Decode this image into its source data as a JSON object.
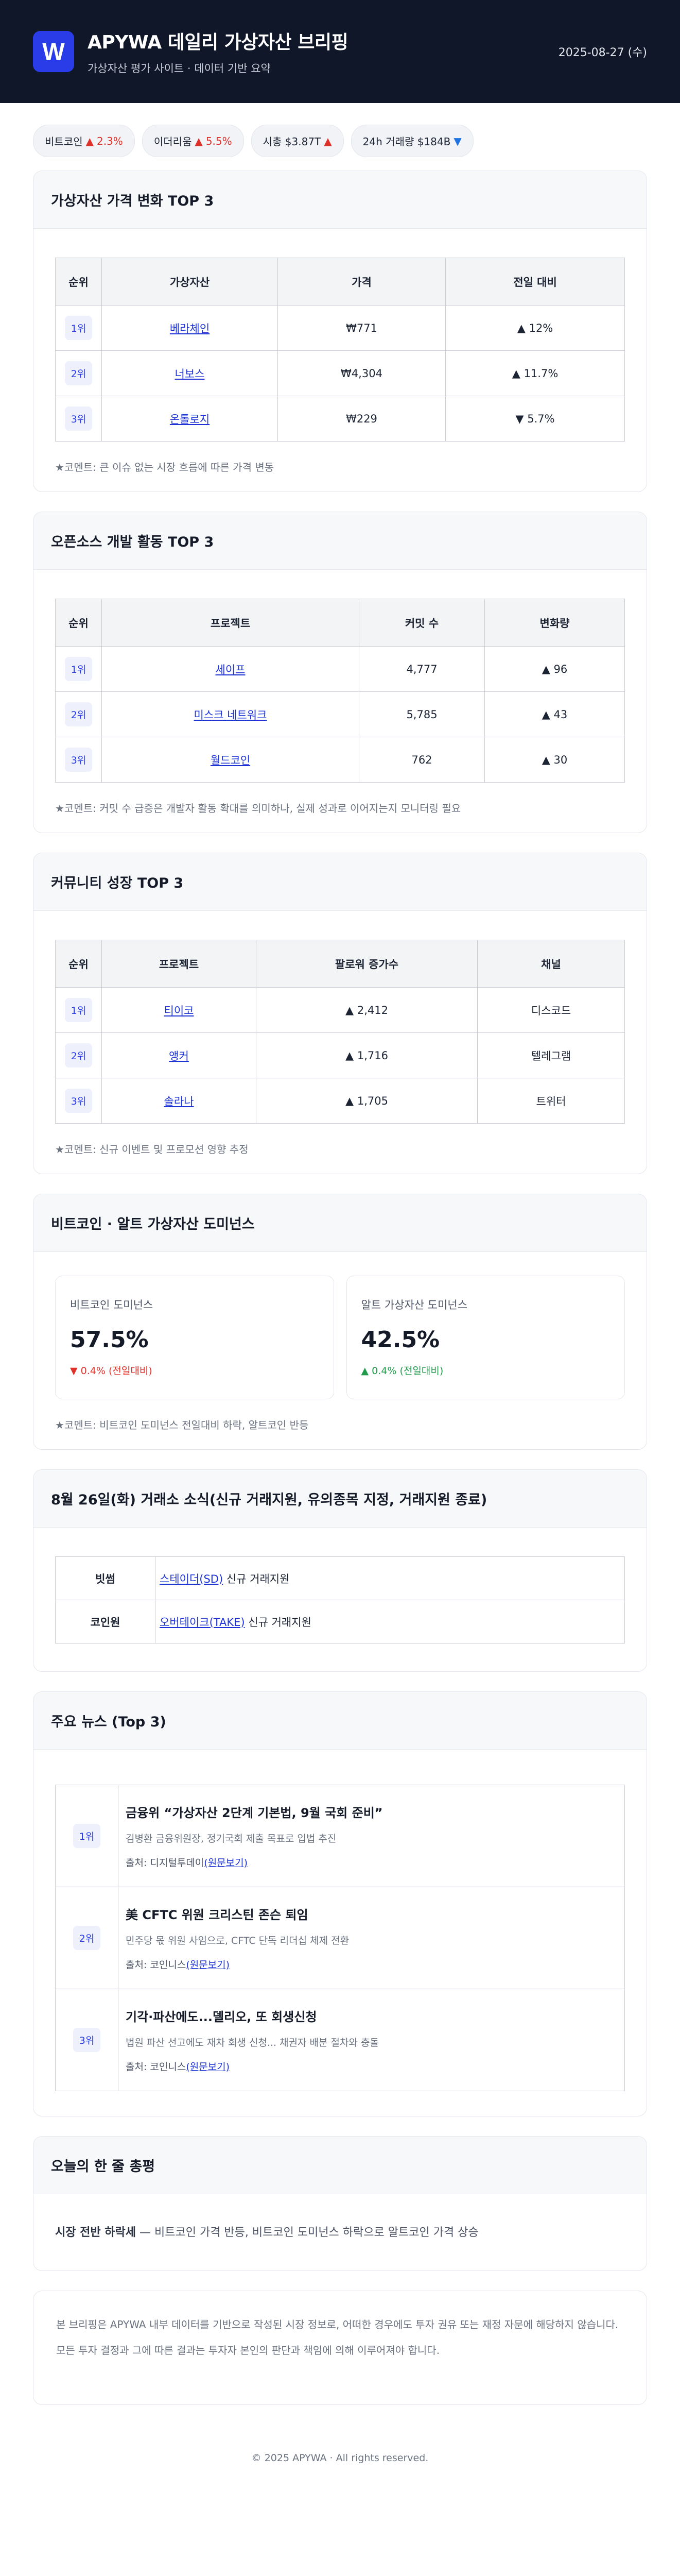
{
  "header": {
    "logo_letter": "W",
    "title": "APYWA 데일리 가상자산 브리핑",
    "subtitle": "가상자산 평가 사이트 · 데이터 기반 요약",
    "date": "2025-08-27 (수)"
  },
  "ticker": [
    {
      "label": "비트코인",
      "arrow": "▲",
      "value": "2.3%",
      "dir": "up"
    },
    {
      "label": "이더리움",
      "arrow": "▲",
      "value": "5.5%",
      "dir": "up"
    },
    {
      "label": "시총 $3.87T",
      "arrow": "▲",
      "value": "",
      "dir": "up"
    },
    {
      "label": "24h 거래량 $184B",
      "arrow": "▼",
      "value": "",
      "dir": "down"
    }
  ],
  "price_top3": {
    "title": "가상자산 가격 변화 TOP 3",
    "headers": [
      "순위",
      "가상자산",
      "가격",
      "전일 대비"
    ],
    "rows": [
      {
        "rank": "1위",
        "name": "베라체인",
        "price": "₩771",
        "arrow": "▲",
        "change": "12%",
        "dir": "up"
      },
      {
        "rank": "2위",
        "name": "너보스",
        "price": "₩4,304",
        "arrow": "▲",
        "change": "11.7%",
        "dir": "up"
      },
      {
        "rank": "3위",
        "name": "온톨로지",
        "price": "₩229",
        "arrow": "▼",
        "change": "5.7%",
        "dir": "down"
      }
    ],
    "comment": "★코멘트: 큰 이슈 없는 시장 흐름에 따른 가격 변동"
  },
  "dev_top3": {
    "title": "오픈소스 개발 활동 TOP 3",
    "headers": [
      "순위",
      "프로젝트",
      "커밋 수",
      "변화량"
    ],
    "rows": [
      {
        "rank": "1위",
        "name": "세이프",
        "commits": "4,777",
        "arrow": "▲",
        "change": "96"
      },
      {
        "rank": "2위",
        "name": "미스크 네트워크",
        "commits": "5,785",
        "arrow": "▲",
        "change": "43"
      },
      {
        "rank": "3위",
        "name": "월드코인",
        "commits": "762",
        "arrow": "▲",
        "change": "30"
      }
    ],
    "comment": "★코멘트: 커밋 수 급증은 개발자 활동 확대를 의미하나, 실제 성과로 이어지는지 모니터링 필요"
  },
  "community_top3": {
    "title": "커뮤니티 성장 TOP 3",
    "headers": [
      "순위",
      "프로젝트",
      "팔로워 증가수",
      "채널"
    ],
    "rows": [
      {
        "rank": "1위",
        "name": "티이코",
        "arrow": "▲",
        "followers": "2,412",
        "channel": "디스코드"
      },
      {
        "rank": "2위",
        "name": "앵커",
        "arrow": "▲",
        "followers": "1,716",
        "channel": "텔레그램"
      },
      {
        "rank": "3위",
        "name": "솔라나",
        "arrow": "▲",
        "followers": "1,705",
        "channel": "트위터"
      }
    ],
    "comment": "★코멘트: 신규 이벤트 및 프로모션 영향 추정"
  },
  "dominance": {
    "title": "비트코인 · 알트 가상자산 도미넌스",
    "btc": {
      "label": "비트코인 도미넌스",
      "value": "57.5%",
      "arrow": "▼",
      "change": "0.4%",
      "note": "(전일대비)"
    },
    "alt": {
      "label": "알트 가상자산 도미넌스",
      "value": "42.5%",
      "arrow": "▲",
      "change": "0.4%",
      "note": "(전일대비)"
    },
    "comment": "★코멘트: 비트코인 도미넌스 전일대비 하락, 알트코인 반등"
  },
  "exchange": {
    "title": "8월 26일(화) 거래소 소식(신규 거래지원, 유의종목 지정, 거래지원 종료)",
    "rows": [
      {
        "exchange": "빗썸",
        "link": "스테이더(SD)",
        "text": " 신규 거래지원"
      },
      {
        "exchange": "코인원",
        "link": "오버테이크(TAKE)",
        "text": " 신규 거래지원"
      }
    ]
  },
  "news": {
    "title": "주요 뉴스 (Top 3)",
    "source_prefix": "출처: ",
    "items": [
      {
        "rank": "1위",
        "title": "금융위 “가상자산 2단계 기본법, 9월 국회 준비”",
        "summary": "김병환 금융위원장, 정기국회 제출 목표로 입법 추진",
        "source": "디지털투데이",
        "link": "(원문보기)"
      },
      {
        "rank": "2위",
        "title": "美 CFTC 위원 크리스틴 존슨 퇴임",
        "summary": "민주당 몫 위원 사임으로, CFTC 단독 리더십 체제 전환",
        "source": "코인니스",
        "link": "(원문보기)"
      },
      {
        "rank": "3위",
        "title": "기각·파산에도...델리오, 또 회생신청",
        "summary": "법원 파산 선고에도 재차 회생 신청... 채권자 배분 절차와 충돌",
        "source": "코인니스",
        "link": "(원문보기)"
      }
    ]
  },
  "summary": {
    "title": "오늘의 한 줄 총평",
    "bold": "시장 전반 하락세",
    "text": " — 비트코인 가격 반등, 비트코인 도미넌스 하락으로 알트코인 가격 상승"
  },
  "disclaimer": "본 브리핑은 APYWA 내부 데이터를 기반으로 작성된 시장 정보로, 어떠한 경우에도 투자 권유 또는 재정 자문에 해당하지 않습니다. 모든 투자 결정과 그에 따른 결과는 투자자 본인의 판단과 책임에 의해 이루어져야 합니다.",
  "footer": "© 2025 APYWA · All rights reserved.",
  "colors": {
    "header_bg": "#0f1729",
    "accent": "#2a3ce8",
    "up": "#e0302a",
    "down": "#1f73e0",
    "green": "#1f9a4a"
  }
}
